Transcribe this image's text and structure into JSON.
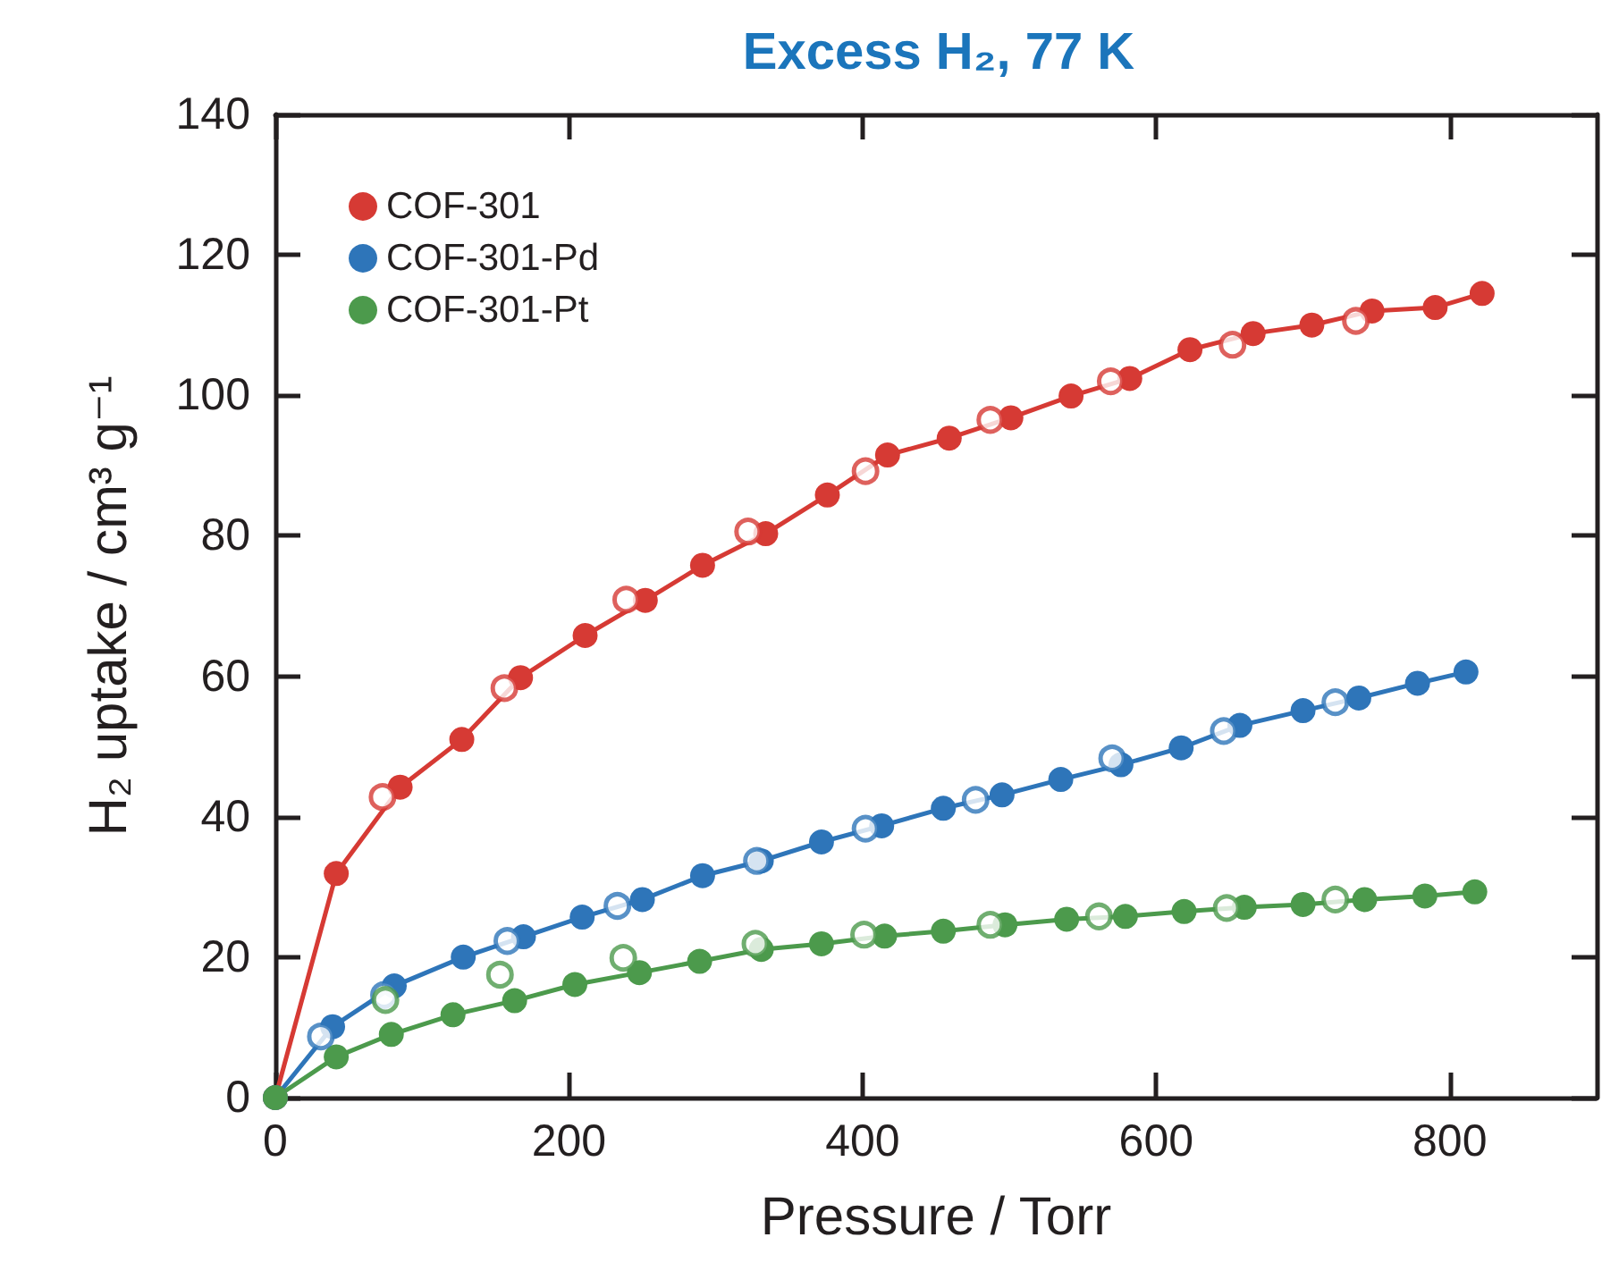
{
  "chart_data": {
    "type": "line",
    "title": "Excess H₂, 77 K",
    "xlabel": "Pressure / Torr",
    "ylabel": "H₂ uptake / cm³ g⁻¹",
    "xlim": [
      0,
      900
    ],
    "xticks": [
      0,
      200,
      400,
      600,
      800
    ],
    "ylim": [
      0,
      140
    ],
    "yticks": [
      0,
      20,
      40,
      60,
      80,
      100,
      120,
      140
    ],
    "grid": false,
    "legend": "top left",
    "marker": "circle",
    "line_style": "solid",
    "series": [
      {
        "name": "COF-301",
        "color": "#d63a34",
        "x": [
          0,
          41.5,
          85,
          127,
          167,
          211,
          252,
          291,
          334,
          376,
          417,
          459,
          501,
          542,
          582,
          623,
          666,
          706,
          747,
          790,
          822
        ],
        "values": [
          0,
          31.9,
          44.2,
          51,
          59.8,
          65.8,
          70.8,
          75.8,
          80.3,
          85.8,
          91.5,
          93.9,
          96.8,
          99.9,
          102.4,
          106.5,
          108.8,
          110,
          112,
          112.5,
          114.5
        ]
      },
      {
        "name": "COF-301-Pd",
        "color": "#2e75b9",
        "x": [
          0,
          39,
          81,
          128,
          169,
          209,
          250,
          291,
          331,
          372,
          413,
          455,
          495,
          535,
          576,
          617,
          657,
          700,
          738,
          778,
          811
        ],
        "values": [
          0,
          10.1,
          15.9,
          20,
          22.9,
          25.7,
          28.2,
          31.6,
          33.7,
          36.4,
          38.7,
          41.2,
          43.1,
          45.3,
          47.4,
          49.8,
          53,
          55.1,
          56.9,
          59,
          60.6
        ]
      },
      {
        "name": "COF-301-Pt",
        "color": "#4c9a4c",
        "x": [
          0,
          41.5,
          79,
          121,
          163,
          204,
          248,
          289,
          331,
          372,
          415,
          455,
          497,
          539,
          579,
          619,
          660,
          700,
          742,
          783,
          817
        ],
        "values": [
          0,
          5.8,
          9,
          11.8,
          13.8,
          16.1,
          17.8,
          19.4,
          21.1,
          21.9,
          23,
          23.7,
          24.6,
          25.4,
          25.8,
          26.5,
          27.1,
          27.5,
          28.2,
          28.7,
          29.3
        ]
      },
      {
        "type": "scatter",
        "color": "#d63a34",
        "x": [
          73,
          156,
          239,
          322,
          402,
          487,
          569,
          652,
          736
        ],
        "values": [
          42.8,
          58.3,
          70.9,
          80.6,
          89.2,
          96.5,
          102,
          107.2,
          110.6
        ]
      },
      {
        "type": "scatter",
        "color": "#2e75b9",
        "x": [
          31,
          74,
          158,
          233,
          328,
          402,
          477,
          570,
          646,
          722
        ],
        "values": [
          8.7,
          14.6,
          22.3,
          27.3,
          33.7,
          38.3,
          42.4,
          48.3,
          52.2,
          56.3
        ]
      },
      {
        "type": "scatter",
        "color": "#4c9a4c",
        "x": [
          75,
          153,
          237,
          327,
          401,
          487,
          561,
          648,
          722
        ],
        "values": [
          13.9,
          17.5,
          19.9,
          21.9,
          23.2,
          24.6,
          25.8,
          27,
          28.2
        ]
      }
    ]
  }
}
